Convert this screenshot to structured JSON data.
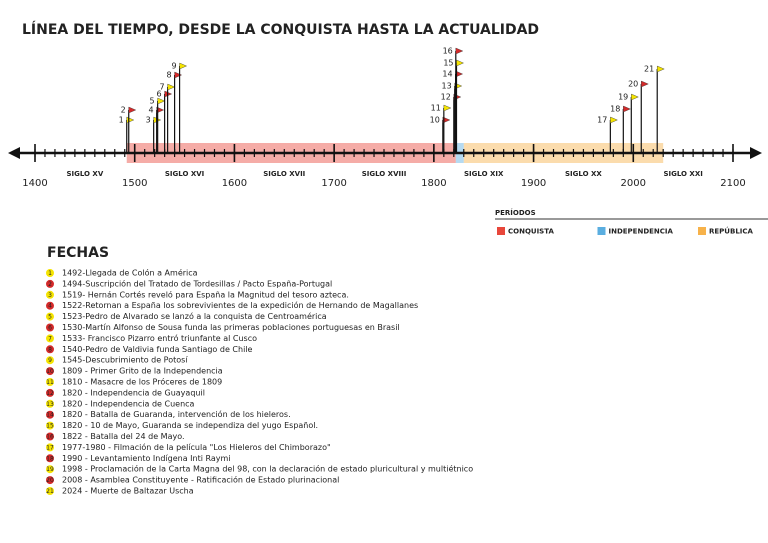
{
  "title": "LÍNEA DEL TIEMPO, DESDE LA CONQUISTA HASTA LA ACTUALIDAD",
  "axis": {
    "start": 1400,
    "end": 2100,
    "years": [
      1400,
      1500,
      1600,
      1700,
      1800,
      1900,
      2000,
      2100
    ],
    "centuries": [
      {
        "label": "SIGLO XV",
        "year": 1450
      },
      {
        "label": "SIGLO XVI",
        "year": 1550
      },
      {
        "label": "SIGLO XVII",
        "year": 1650
      },
      {
        "label": "SIGLO XVIII",
        "year": 1750
      },
      {
        "label": "SIGLO XIX",
        "year": 1850
      },
      {
        "label": "SIGLO XX",
        "year": 1950
      },
      {
        "label": "SIGLO XXI",
        "year": 2050
      }
    ]
  },
  "periods_title": "PERÍODOS",
  "periods": [
    {
      "label": "CONQUISTA",
      "color": "#e8473b",
      "start": 1492,
      "end": 1822
    },
    {
      "label": "INDEPENDENCIA",
      "color": "#5aaee0",
      "start": 1822,
      "end": 1830
    },
    {
      "label": "REPÚBLICA",
      "color": "#f7b24a",
      "start": 1830,
      "end": 2030
    }
  ],
  "flags": [
    {
      "num": "1",
      "year": 1492,
      "color": "#f5e400"
    },
    {
      "num": "2",
      "year": 1494,
      "color": "#d42a2a"
    },
    {
      "num": "3",
      "year": 1519,
      "color": "#f5e400"
    },
    {
      "num": "4",
      "year": 1522,
      "color": "#d42a2a"
    },
    {
      "num": "5",
      "year": 1523,
      "color": "#f5e400"
    },
    {
      "num": "6",
      "year": 1530,
      "color": "#d42a2a"
    },
    {
      "num": "7",
      "year": 1533,
      "color": "#f5e400"
    },
    {
      "num": "8",
      "year": 1540,
      "color": "#d42a2a"
    },
    {
      "num": "9",
      "year": 1545,
      "color": "#f5e400"
    },
    {
      "num": "10",
      "year": 1809,
      "color": "#d42a2a"
    },
    {
      "num": "11",
      "year": 1810,
      "color": "#f5e400"
    },
    {
      "num": "12",
      "year": 1820,
      "color": "#d42a2a"
    },
    {
      "num": "13",
      "year": 1820,
      "color": "#f5e400"
    },
    {
      "num": "14",
      "year": 1820,
      "color": "#d42a2a"
    },
    {
      "num": "15",
      "year": 1820,
      "color": "#f5e400"
    },
    {
      "num": "16",
      "year": 1822,
      "color": "#d42a2a"
    },
    {
      "num": "17",
      "year": 1977,
      "color": "#f5e400"
    },
    {
      "num": "18",
      "year": 1990,
      "color": "#d42a2a"
    },
    {
      "num": "19",
      "year": 1998,
      "color": "#f5e400"
    },
    {
      "num": "20",
      "year": 2008,
      "color": "#d42a2a"
    },
    {
      "num": "21",
      "year": 2024,
      "color": "#f5e400"
    }
  ],
  "list_title": "FECHAS",
  "events": [
    "1492-Llegada de Colón a América",
    "1494-Suscripción del Tratado de Tordesillas / Pacto España-Portugal",
    "1519- Hernán Cortés reveló para España la Magnitud del tesoro azteca.",
    "1522-Retornan a España los sobrevivientes de la expedición de Hernando de Magallanes",
    "1523-Pedro de Alvarado se lanzó a la conquista de Centroamérica",
    "1530-Martín Alfonso de Sousa funda las primeras poblaciones portuguesas en Brasil",
    "1533- Francisco Pizarro entró triunfante al Cusco",
    "1540-Pedro de Valdivia funda Santiago de Chile",
    "1545-Descubrimiento de Potosí",
    "1809 - Primer Grito de la Independencia",
    "1810 - Masacre de los Próceres de 1809",
    "1820 - Independencia de Guayaquil",
    "1820 - Independencia de Cuenca",
    "1820 - Batalla de Guaranda, intervención de los hieleros.",
    "1820 - 10 de Mayo, Guaranda se independiza del yugo Español.",
    "1822 - Batalla del 24 de Mayo.",
    "1977-1980 - Filmación de la película \"Los Hieleros del Chimborazo\"",
    "1990 - Levantamiento Indígena Inti Raymi",
    "1998 - Proclamación de la Carta Magna del 98, con la declaración de estado pluricultural y multiétnico",
    "2008 - Asamblea Constituyente - Ratificación de Estado plurinacional",
    "2024 - Muerte de Baltazar Uscha"
  ]
}
